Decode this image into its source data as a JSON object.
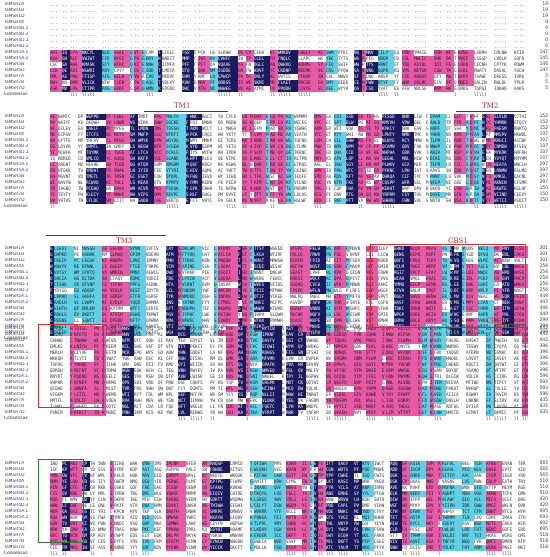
{
  "figure": {
    "names": [
      "TaMSR1A",
      "TaMSR1B",
      "TaMSR1D",
      "TaMSR4A",
      "TaMSR4B.1",
      "TaMSR4B.2",
      "TaMSR4D.1",
      "TaMSR4D.2",
      "TaMSR5A.1",
      "TaMSR5A.2",
      "TaMSR5B",
      "TaMSR5D",
      "TaMSR7A",
      "TaMSR7B",
      "TaMSR7D"
    ],
    "consensus_label": "Consensus",
    "block_ends": [
      [
        "19",
        "19",
        "19",
        "0",
        "0",
        "0",
        "0",
        "0",
        "147",
        "145",
        "146",
        "147",
        "5",
        "5",
        "5"
      ],
      [
        "152",
        "152",
        "152",
        "107",
        "107",
        "107",
        "107",
        "107",
        "297",
        "297",
        "297",
        "297",
        "150",
        "150",
        "150"
      ],
      [
        "301",
        "301",
        "301",
        "256",
        "256",
        "256",
        "256",
        "256",
        "449",
        "447",
        "446",
        "449",
        "299",
        "299",
        "299"
      ],
      [
        "442",
        "442",
        "442",
        "396",
        "396",
        "396",
        "396",
        "396",
        "596",
        "594",
        "593",
        "596",
        "435",
        "435",
        "435"
      ],
      [
        "565",
        "565",
        "565",
        "510",
        "510",
        "510",
        "420",
        "420",
        "695",
        "693",
        "692",
        "695",
        "518",
        "518",
        "518"
      ]
    ],
    "labels": {
      "tm1": "TM1",
      "tm2": "TM2",
      "tm3": "TM3",
      "cbs1": "CBS1",
      "cbs2": "CBS2"
    },
    "colors": {
      "identical": "#1a1a5e",
      "high": "#e85aa8",
      "similar": "#5fd0e6",
      "cbs1_box": "#d32f2f",
      "cbs2_box": "#2e7d32",
      "tm_label": "#c62828",
      "tm_line": "#6a1b9a"
    }
  }
}
